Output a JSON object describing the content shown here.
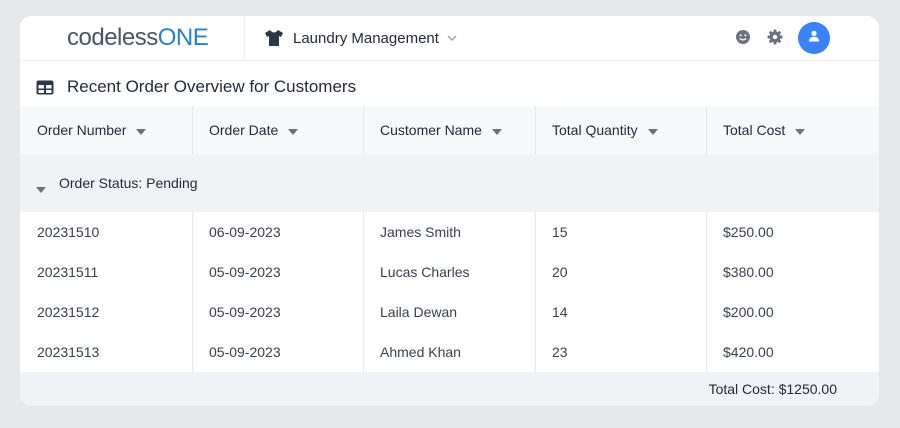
{
  "header": {
    "logo_part1": "codeless",
    "logo_part2": "ONE",
    "app_name": "Laundry Management",
    "icons": [
      "shirt-icon",
      "chevron-down-icon",
      "smiley-icon",
      "gear-icon",
      "user-icon"
    ]
  },
  "page": {
    "title": "Recent Order Overview for Customers",
    "title_icon": "table-icon"
  },
  "table": {
    "columns": [
      "Order Number",
      "Order Date",
      "Customer Name",
      "Total Quantity",
      "Total Cost"
    ],
    "group_label": "Order Status: Pending",
    "rows": [
      [
        "20231510",
        "06-09-2023",
        "James Smith",
        "15",
        "$250.00"
      ],
      [
        "20231511",
        "05-09-2023",
        "Lucas Charles",
        "20",
        "$380.00"
      ],
      [
        "20231512",
        "05-09-2023",
        "Laila Dewan",
        "14",
        "$200.00"
      ],
      [
        "20231513",
        "05-09-2023",
        "Ahmed Khan",
        "23",
        "$420.00"
      ]
    ],
    "footer_total": "Total Cost: $1250.00"
  },
  "colors": {
    "accent": "#3b82f6",
    "logo_blue": "#2f80c6",
    "background": "#e6e8ec"
  }
}
